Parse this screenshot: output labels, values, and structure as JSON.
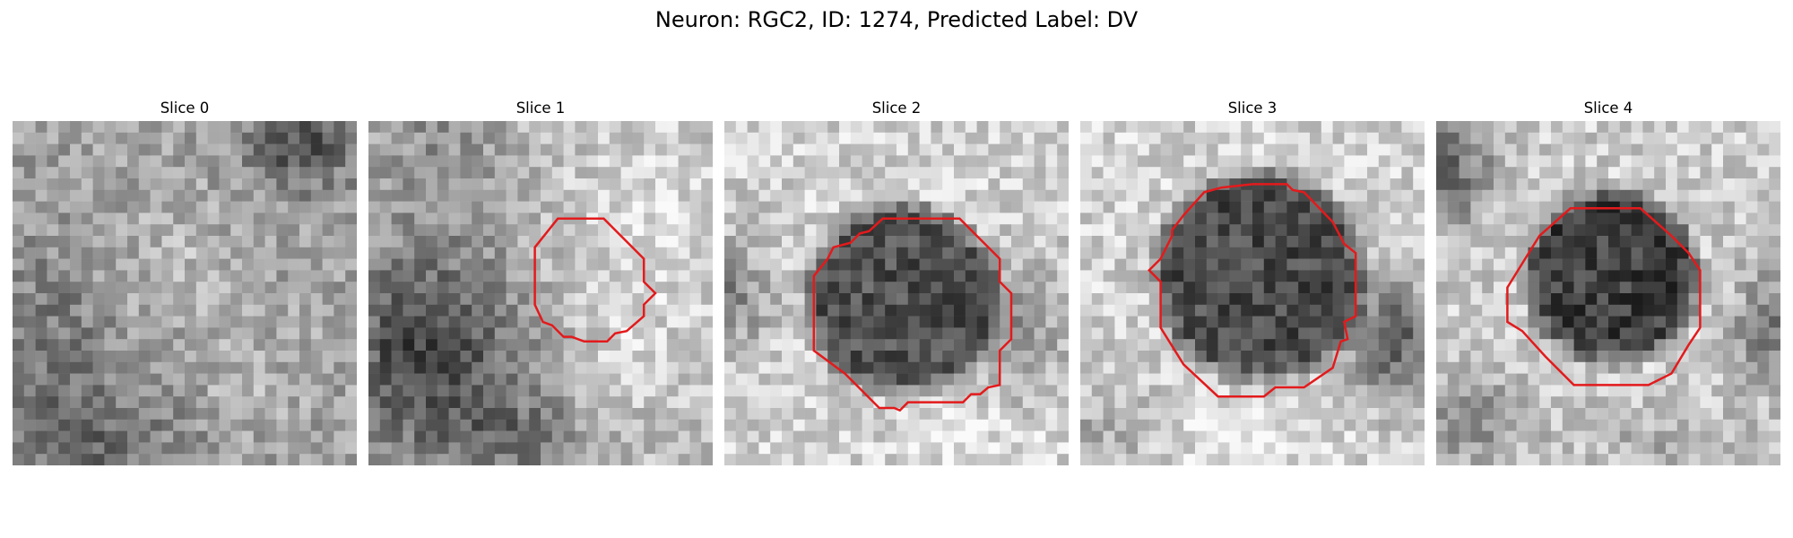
{
  "figure": {
    "title": "Neuron: RGC2, ID: 1274, Predicted Label: DV",
    "overlay_color": "#e31a1c",
    "grid_size": 30,
    "panels": [
      {
        "title": "Slice 0",
        "has_contour": false
      },
      {
        "title": "Slice 1",
        "has_contour": true
      },
      {
        "title": "Slice 2",
        "has_contour": true
      },
      {
        "title": "Slice 3",
        "has_contour": true
      },
      {
        "title": "Slice 4",
        "has_contour": true
      }
    ]
  }
}
